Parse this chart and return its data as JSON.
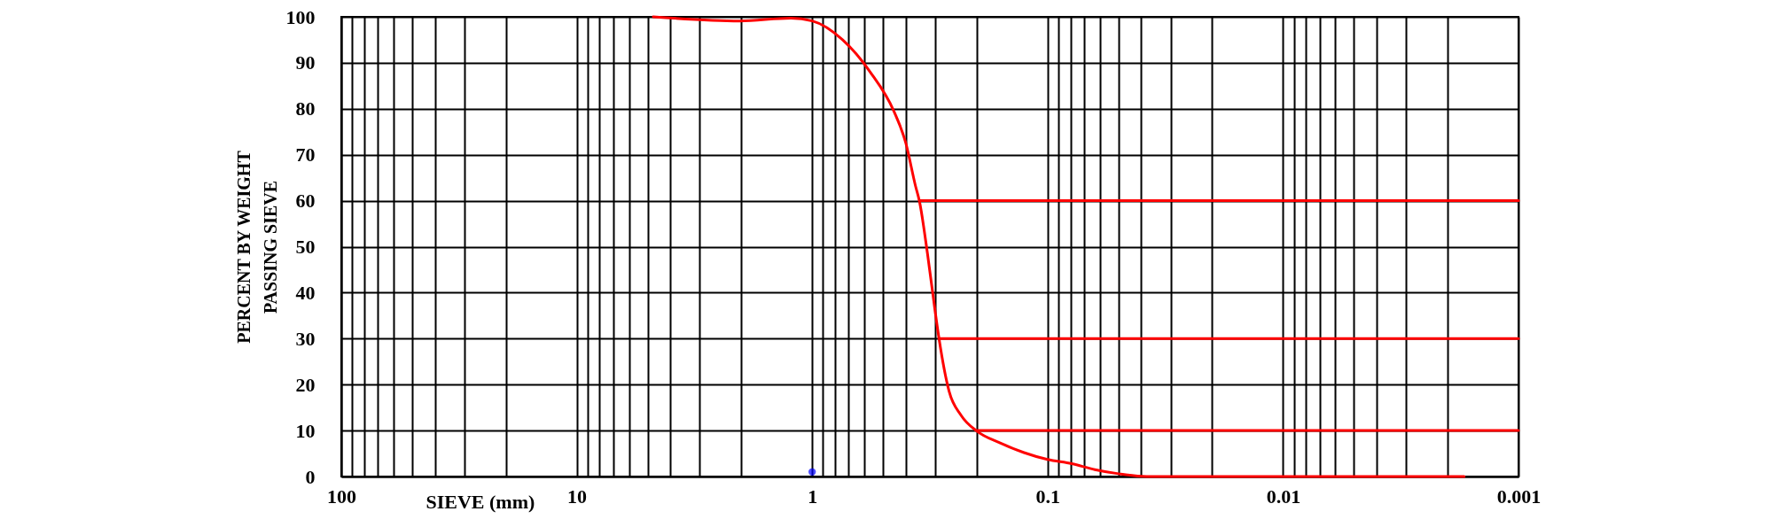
{
  "chart_data": {
    "type": "line",
    "xlabel": "SIEVE (mm)",
    "ylabel": "PERCENT BY WEIGHT\nPASSING SIEVE",
    "log": "x",
    "grid": true,
    "marker": "none",
    "line_style": "solid",
    "xlim": [
      100,
      0.001
    ],
    "ylim": [
      0,
      100
    ],
    "yticks": [
      0,
      10,
      20,
      30,
      40,
      50,
      60,
      70,
      80,
      90,
      100
    ],
    "xticks": [
      100,
      {
        "value": 90,
        "label": null
      },
      {
        "value": 80,
        "label": null
      },
      {
        "value": 70,
        "label": null
      },
      {
        "value": 60,
        "label": null
      },
      {
        "value": 50,
        "label": null
      },
      {
        "value": 40,
        "label": null
      },
      {
        "value": 30,
        "label": null
      },
      {
        "value": 20,
        "label": null
      },
      10,
      {
        "value": 9,
        "label": null
      },
      {
        "value": 8,
        "label": null
      },
      {
        "value": 7,
        "label": null
      },
      {
        "value": 6,
        "label": null
      },
      {
        "value": 5,
        "label": null
      },
      {
        "value": 4,
        "label": null
      },
      {
        "value": 3,
        "label": null
      },
      {
        "value": 2,
        "label": null
      },
      1,
      {
        "value": 0.9,
        "label": null
      },
      {
        "value": 0.8,
        "label": null
      },
      {
        "value": 0.7,
        "label": null
      },
      {
        "value": 0.6,
        "label": null
      },
      {
        "value": 0.5,
        "label": null
      },
      {
        "value": 0.4,
        "label": null
      },
      {
        "value": 0.3,
        "label": null
      },
      {
        "value": 0.2,
        "label": null
      },
      0.1,
      {
        "value": 0.09,
        "label": null
      },
      {
        "value": 0.08,
        "label": null
      },
      {
        "value": 0.07,
        "label": null
      },
      {
        "value": 0.06,
        "label": null
      },
      {
        "value": 0.05,
        "label": null
      },
      {
        "value": 0.04,
        "label": null
      },
      {
        "value": 0.03,
        "label": null
      },
      {
        "value": 0.02,
        "label": null
      },
      0.01,
      {
        "value": 0.009,
        "label": null
      },
      {
        "value": 0.008,
        "label": null
      },
      {
        "value": 0.007,
        "label": null
      },
      {
        "value": 0.006,
        "label": null
      },
      {
        "value": 0.005,
        "label": null
      },
      {
        "value": 0.004,
        "label": null
      },
      {
        "value": 0.003,
        "label": null
      },
      {
        "value": 0.002,
        "label": null
      },
      0.001
    ],
    "series": [
      {
        "color": "#ff0000",
        "x": [
          4.73,
          2.03,
          1.23,
          1.0,
          0.743,
          0.567,
          0.45,
          0.401,
          0.364,
          0.35,
          0.324,
          0.3,
          0.289,
          0.262,
          0.233,
          0.2,
          0.159,
          0.126,
          0.1,
          0.079,
          0.063,
          0.05,
          0.038,
          0.0017
        ],
        "values": [
          100,
          99.1,
          99.7,
          99.1,
          95,
          88,
          79.5,
          72.7,
          63.2,
          59.8,
          48.6,
          35.7,
          29.9,
          18.5,
          13.3,
          9.9,
          7.3,
          5.2,
          3.7,
          2.8,
          1.5,
          0.6,
          0,
          0
        ]
      },
      {
        "color": "#ff0000",
        "x": [
          0.35,
          0.001
        ],
        "values": [
          60,
          60
        ]
      },
      {
        "color": "#ff0000",
        "x": [
          0.289,
          0.001
        ],
        "values": [
          30,
          30
        ]
      },
      {
        "color": "#ff0000",
        "x": [
          0.2,
          0.001
        ],
        "values": [
          10,
          10
        ]
      },
      {
        "type": "scatter",
        "marker": "circle",
        "color": "#0000ff",
        "x": [
          1
        ],
        "values": [
          1
        ]
      }
    ]
  }
}
